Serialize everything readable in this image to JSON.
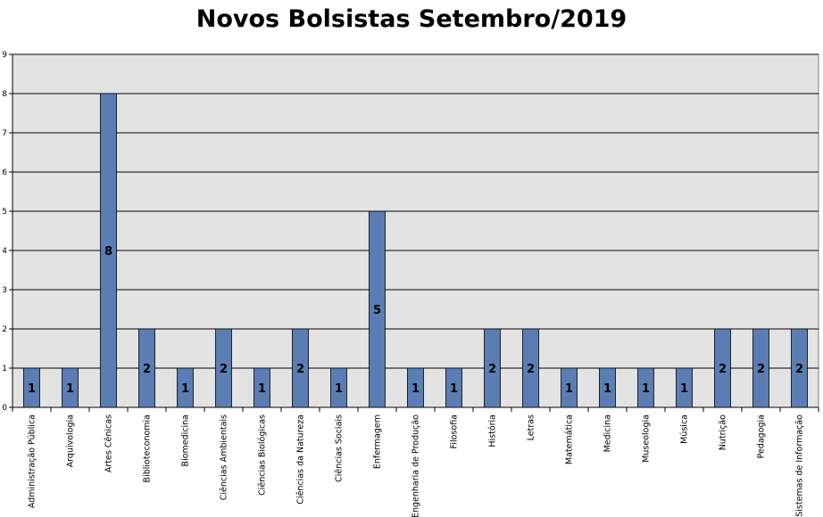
{
  "chart_data": {
    "type": "bar",
    "title": "Novos Bolsistas Setembro/2019",
    "xlabel": "",
    "ylabel": "",
    "ylim": [
      0,
      9
    ],
    "yticks": [
      0,
      1,
      2,
      3,
      4,
      5,
      6,
      7,
      8,
      9
    ],
    "grid": true,
    "legend": "none",
    "categories": [
      "Administração Pública",
      "Arquivologia",
      "Artes Cênicas",
      "Biblioteconomia",
      "Biomedicina",
      "Ciências Ambientais",
      "Ciências Biológicas",
      "Ciências da Natureza",
      "Ciências Sociais",
      "Enfermagem",
      "Engenharia de Produção",
      "Filosofia",
      "História",
      "Letras",
      "Matemática",
      "Medicina",
      "Museologia",
      "Música",
      "Nutrição",
      "Pedagogia",
      "Sistemas de Informação"
    ],
    "values": [
      1,
      1,
      8,
      2,
      1,
      2,
      1,
      2,
      1,
      5,
      1,
      1,
      2,
      2,
      1,
      1,
      1,
      1,
      2,
      2,
      2
    ],
    "colors": {
      "bar": "#5a7db3",
      "plot_background": "#e3e3e3",
      "gridline": "#000000"
    }
  }
}
